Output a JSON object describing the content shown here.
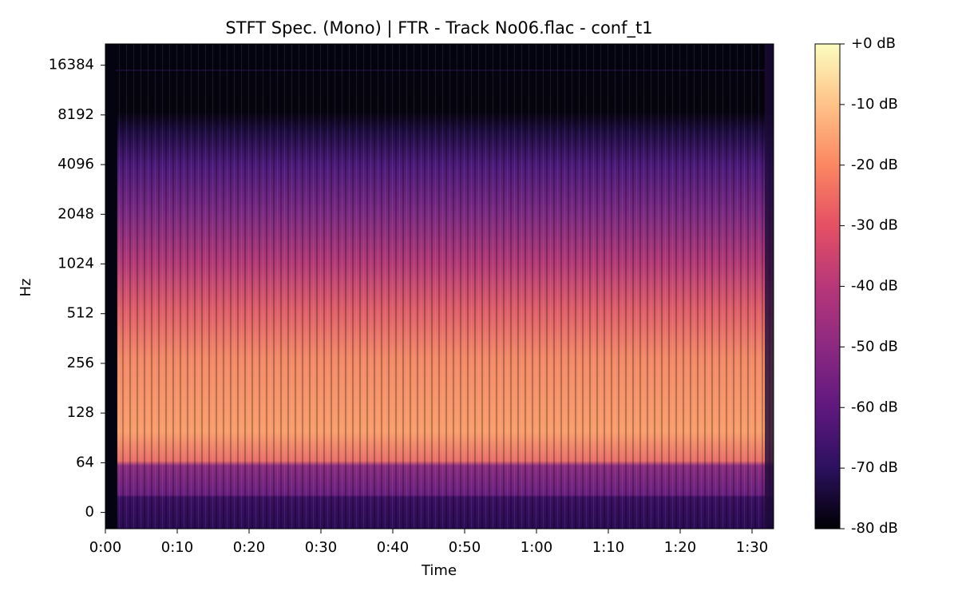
{
  "chart_data": {
    "type": "spectrogram",
    "title": "STFT Spec. (Mono) | FTR - Track No06.flac - conf_t1",
    "x_label": "Time",
    "y_label": "Hz",
    "xlim": [
      0,
      93
    ],
    "xticks": [
      {
        "value": 0,
        "label": "0:00"
      },
      {
        "value": 10,
        "label": "0:10"
      },
      {
        "value": 20,
        "label": "0:20"
      },
      {
        "value": 30,
        "label": "0:30"
      },
      {
        "value": 40,
        "label": "0:40"
      },
      {
        "value": 50,
        "label": "0:50"
      },
      {
        "value": 60,
        "label": "1:00"
      },
      {
        "value": 70,
        "label": "1:10"
      },
      {
        "value": 80,
        "label": "1:20"
      },
      {
        "value": 90,
        "label": "1:30"
      }
    ],
    "yscale": "symlog",
    "linthresh": 64,
    "ylim": [
      -21,
      22050
    ],
    "yticks": [
      0,
      64,
      128,
      256,
      512,
      1024,
      2048,
      4096,
      8192,
      16384
    ],
    "colorbar_lim": [
      -80,
      0
    ],
    "colorbar_ticks": [
      {
        "value": 0,
        "label": "+0 dB"
      },
      {
        "value": -10,
        "label": "-10 dB"
      },
      {
        "value": -20,
        "label": "-20 dB"
      },
      {
        "value": -30,
        "label": "-30 dB"
      },
      {
        "value": -40,
        "label": "-40 dB"
      },
      {
        "value": -50,
        "label": "-50 dB"
      },
      {
        "value": -60,
        "label": "-60 dB"
      },
      {
        "value": -70,
        "label": "-70 dB"
      },
      {
        "value": -80,
        "label": "-80 dB"
      }
    ]
  }
}
